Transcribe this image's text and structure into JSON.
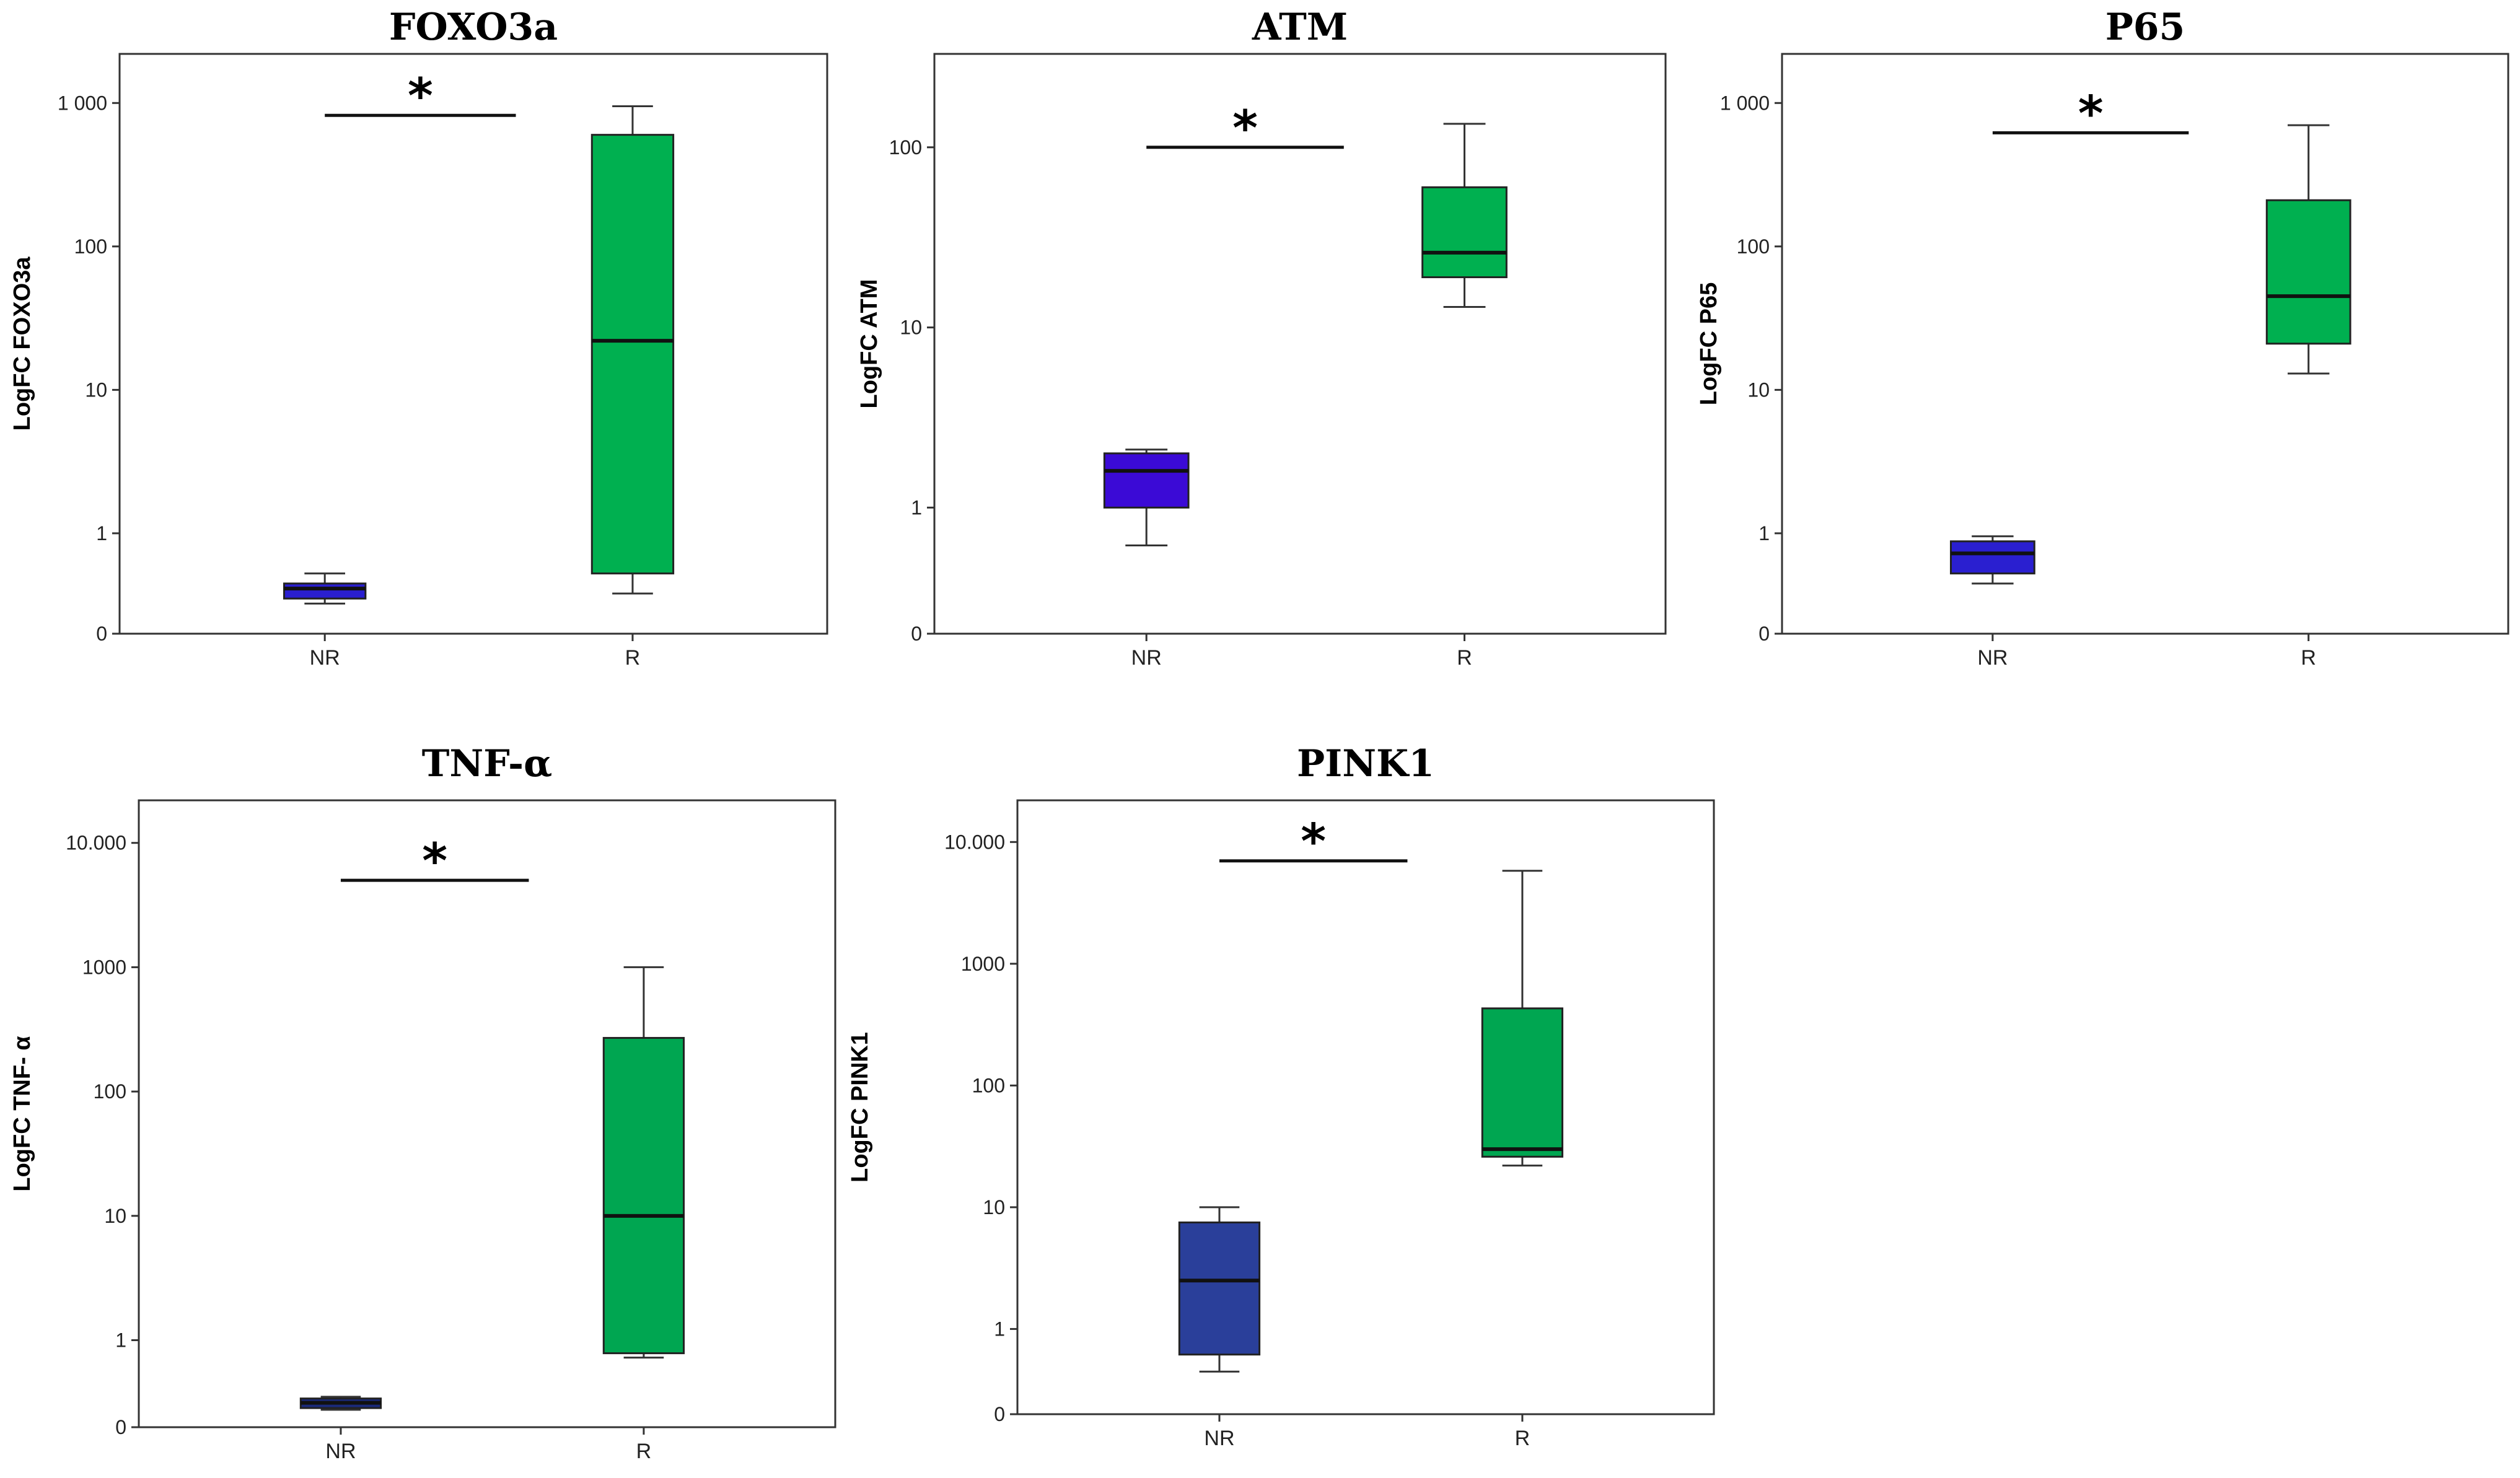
{
  "chart_data": [
    {
      "type": "box",
      "title": "FOXO3a",
      "ylabel": "LogFC FOXO3a",
      "yticks": [
        0,
        1,
        10,
        100,
        1000
      ],
      "yticklabels": [
        "0",
        "1",
        "10",
        "100",
        "1 000"
      ],
      "ylim": [
        0,
        2200
      ],
      "categories": [
        "NR",
        "R"
      ],
      "boxes": [
        {
          "category": "NR",
          "min": 0.3,
          "q1": 0.35,
          "median": 0.45,
          "q3": 0.5,
          "max": 0.6,
          "color": "#2a1fd0"
        },
        {
          "category": "R",
          "min": 0.4,
          "q1": 0.6,
          "median": 22,
          "q3": 600,
          "max": 950,
          "color": "#00b050"
        }
      ],
      "significance": {
        "label": "*",
        "level": 820
      }
    },
    {
      "type": "box",
      "title": "ATM",
      "ylabel": "LogFC ATM",
      "yticks": [
        0,
        1,
        10,
        100
      ],
      "yticklabels": [
        "0",
        "1",
        "10",
        "100"
      ],
      "ylim": [
        0,
        330
      ],
      "categories": [
        "NR",
        "R"
      ],
      "boxes": [
        {
          "category": "NR",
          "min": 0.7,
          "q1": 1.0,
          "median": 1.6,
          "q3": 2.0,
          "max": 2.1,
          "color": "#3b0ad6"
        },
        {
          "category": "R",
          "min": 13,
          "q1": 19,
          "median": 26,
          "q3": 60,
          "max": 135,
          "color": "#00b050"
        }
      ],
      "significance": {
        "label": "*",
        "level": 100
      }
    },
    {
      "type": "box",
      "title": "P65",
      "ylabel": "LogFC P65",
      "yticks": [
        0,
        1,
        10,
        100,
        1000
      ],
      "yticklabels": [
        "0",
        "1",
        "10",
        "100",
        "1 000"
      ],
      "ylim": [
        0,
        2200
      ],
      "categories": [
        "NR",
        "R"
      ],
      "boxes": [
        {
          "category": "NR",
          "min": 0.5,
          "q1": 0.6,
          "median": 0.8,
          "q3": 0.92,
          "max": 0.97,
          "color": "#2a1fd0"
        },
        {
          "category": "R",
          "min": 13,
          "q1": 21,
          "median": 45,
          "q3": 210,
          "max": 700,
          "color": "#00b050"
        }
      ],
      "significance": {
        "label": "*",
        "level": 620
      }
    },
    {
      "type": "box",
      "title": "TNF-α",
      "ylabel": "LogFC TNF- α",
      "yticks": [
        0,
        1,
        10,
        100,
        1000,
        10000
      ],
      "yticklabels": [
        "0",
        "1",
        "10",
        "100",
        "1000",
        "10.000"
      ],
      "ylim": [
        0,
        22000
      ],
      "categories": [
        "NR",
        "R"
      ],
      "boxes": [
        {
          "category": "NR",
          "min": 0.2,
          "q1": 0.22,
          "median": 0.28,
          "q3": 0.33,
          "max": 0.35,
          "color": "#1a2a7a"
        },
        {
          "category": "R",
          "min": 0.8,
          "q1": 0.85,
          "median": 10,
          "q3": 270,
          "max": 1000,
          "color": "#00a651"
        }
      ],
      "significance": {
        "label": "*",
        "level": 5000
      }
    },
    {
      "type": "box",
      "title": "PINK1",
      "ylabel": "LogFC PINK1",
      "yticks": [
        0,
        1,
        10,
        100,
        1000,
        10000
      ],
      "yticklabels": [
        "0",
        "1",
        "10",
        "100",
        "1000",
        "10.000"
      ],
      "ylim": [
        0,
        22000
      ],
      "categories": [
        "NR",
        "R"
      ],
      "boxes": [
        {
          "category": "NR",
          "min": 0.5,
          "q1": 0.7,
          "median": 2.5,
          "q3": 7.5,
          "max": 10,
          "color": "#2a3f9a"
        },
        {
          "category": "R",
          "min": 22,
          "q1": 26,
          "median": 30,
          "q3": 430,
          "max": 5800,
          "color": "#00a651"
        }
      ],
      "significance": {
        "label": "*",
        "level": 7000
      }
    }
  ]
}
